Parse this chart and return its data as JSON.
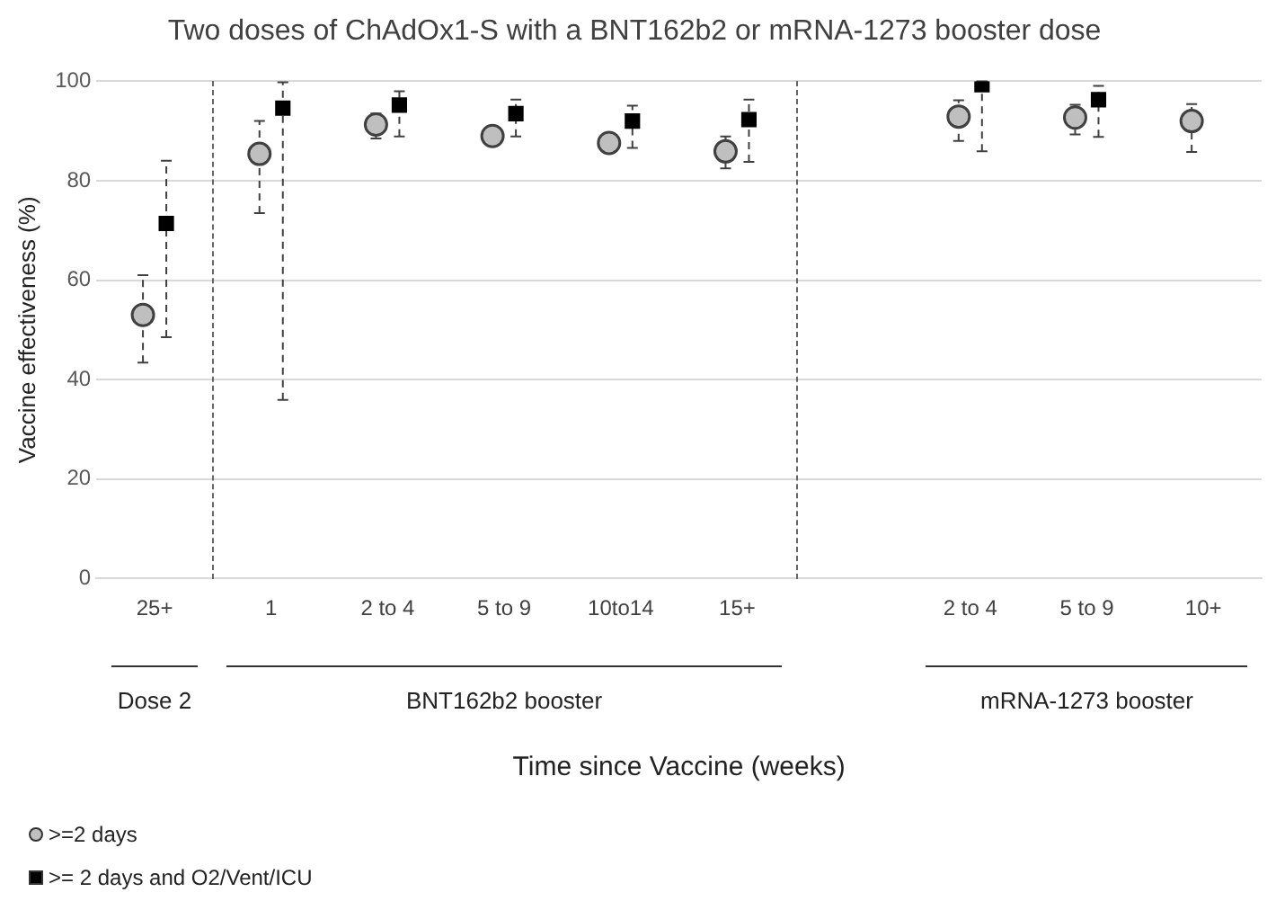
{
  "chart_data": {
    "type": "scatter",
    "title": "Two doses of ChAdOx1-S with a BNT162b2 or mRNA-1273 booster dose",
    "xlabel": "Time since Vaccine (weeks)",
    "ylabel": "Vaccine effectiveness (%)",
    "categories": [
      "25+",
      "1",
      "2 to 4",
      "5 to 9",
      "10to14",
      "15+",
      null,
      "2 to 4",
      "5 to 9",
      "10+"
    ],
    "annotations": [
      "Dose 2",
      "BNT162b2 booster",
      "mRNA-1273 booster"
    ],
    "series": [
      {
        "name": ">=2 days",
        "color": "#bfbfbf",
        "marker": "circle",
        "values": [
          53.0,
          85.4,
          91.3,
          89.0,
          87.6,
          85.9,
          null,
          92.9,
          92.7,
          92.0
        ],
        "errors": [
          [
            43.4,
            61.0
          ],
          [
            73.5,
            92.0
          ],
          [
            88.5,
            93.5
          ],
          [
            87.8,
            90.6
          ],
          [
            85.7,
            89.6
          ],
          [
            82.5,
            88.9
          ],
          null,
          [
            88.0,
            96.2
          ],
          [
            89.3,
            95.3
          ],
          [
            85.8,
            95.4
          ]
        ]
      },
      {
        "name": ">= 2 days and O2/Vent/ICU",
        "color": "#000000",
        "marker": "square",
        "values": [
          71.4,
          94.6,
          95.2,
          93.5,
          92.0,
          92.3,
          null,
          99.3,
          96.3,
          null
        ],
        "errors": [
          [
            48.5,
            84.0
          ],
          [
            35.9,
            99.8
          ],
          [
            88.9,
            98.0
          ],
          [
            88.9,
            96.3
          ],
          [
            86.6,
            95.1
          ],
          [
            83.8,
            96.3
          ],
          null,
          [
            85.9,
            100
          ],
          [
            88.8,
            99.1
          ],
          null
        ]
      }
    ],
    "ylim": [
      0,
      100
    ],
    "yticks": [
      0,
      20,
      40,
      60,
      80,
      100
    ],
    "grid": "y",
    "legend": "bottom left",
    "line_style": "dashed"
  }
}
